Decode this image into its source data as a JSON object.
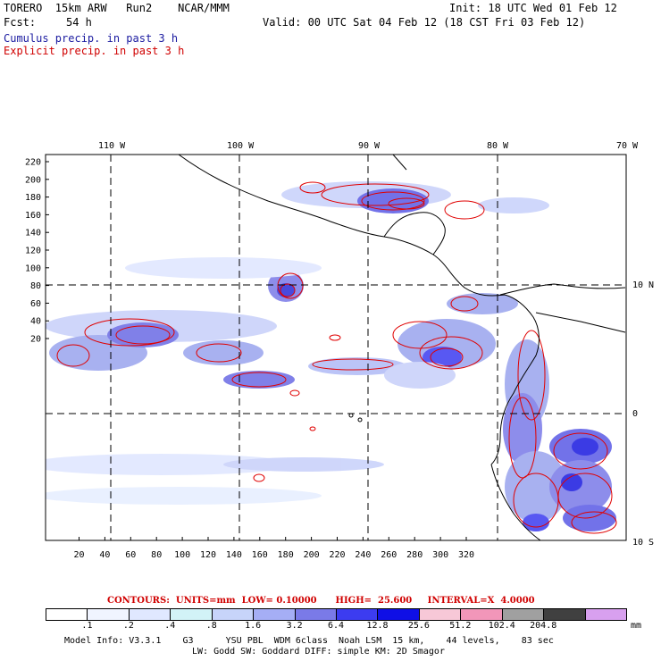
{
  "header": {
    "model": "TORERO  15km ARW   Run2    NCAR/MMM",
    "init": "Init: 18 UTC Wed 01 Feb 12",
    "fcst_label": "Fcst:",
    "fcst_value": "54 h",
    "valid": "Valid: 00 UTC Sat 04 Feb 12 (18 CST Fri 03 Feb 12)",
    "cumulus": "Cumulus precip. in past 3 h",
    "explicit": "Explicit precip. in past 3 h"
  },
  "map": {
    "lon_labels": [
      "110 W",
      "100 W",
      "90 W",
      "80 W",
      "70 W"
    ],
    "lat_labels": [
      "10 N",
      "0",
      "10 S"
    ],
    "y_ticks": [
      "220",
      "200",
      "180",
      "160",
      "140",
      "120",
      "100",
      "80",
      "60",
      "40",
      "20"
    ],
    "x_ticks": [
      "20",
      "40",
      "60",
      "80",
      "100",
      "120",
      "140",
      "160",
      "180",
      "200",
      "220",
      "240",
      "260",
      "280",
      "300",
      "320"
    ],
    "grid": "dashed lat/lon lines",
    "colors": {
      "frame": "#000000",
      "coast": "#000000",
      "cumulus": "#3a3ad8",
      "explicit": "#e00000"
    }
  },
  "contours_text": "CONTOURS:  UNITS=mm  LOW= 0.10000      HIGH=  25.600     INTERVAL=X  4.0000",
  "colorbar": {
    "labels": [
      ".1",
      ".2",
      ".4",
      ".8",
      "1.6",
      "3.2",
      "6.4",
      "12.8",
      "25.6",
      "51.2",
      "102.4",
      "204.8"
    ],
    "unit": "mm",
    "colors": [
      "#ffffff",
      "#f0f4ff",
      "#e0e8ff",
      "#d2f3f7",
      "#c7d4fa",
      "#a5aef5",
      "#7a7ae8",
      "#3c3cf0",
      "#0f0fe6",
      "#f7c8d7",
      "#f296b9",
      "#a0a0a0",
      "#404040",
      "#d8a0ef"
    ]
  },
  "footer": {
    "line1": "Model Info: V3.3.1    G3      YSU PBL  WDM 6class  Noah LSM  15 km,    44 levels,    83 sec",
    "line2": "LW: Godd SW: Goddard DIFF: simple KM: 2D Smagor"
  }
}
